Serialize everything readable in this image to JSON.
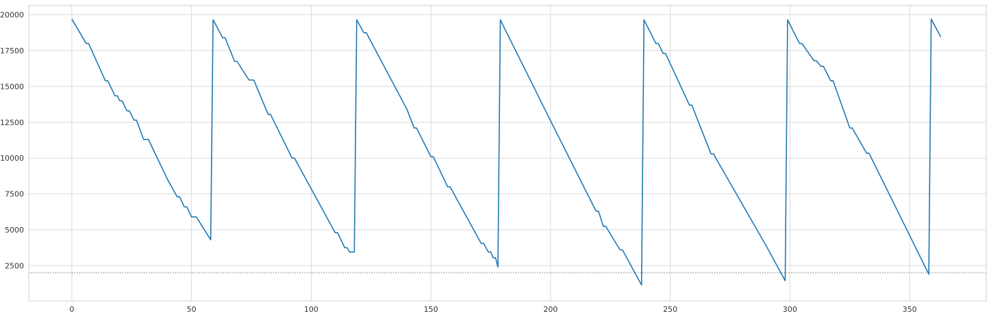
{
  "chart_data": {
    "type": "line",
    "title": "",
    "xlabel": "",
    "ylabel": "",
    "xlim": [
      -18,
      382
    ],
    "ylim": [
      40,
      20650
    ],
    "grid": true,
    "x_ticks": [
      0,
      50,
      100,
      150,
      200,
      250,
      300,
      350
    ],
    "x_tick_labels": [
      "0",
      "50",
      "100",
      "150",
      "200",
      "250",
      "300",
      "350"
    ],
    "y_ticks": [
      2500,
      5000,
      7500,
      10000,
      12500,
      15000,
      17500,
      20000
    ],
    "y_tick_labels": [
      "2500",
      "5000",
      "7500",
      "10000",
      "12500",
      "15000",
      "17500",
      "20000"
    ],
    "reference_line": {
      "y": 2000,
      "style": "dotted",
      "color": "#777777"
    },
    "series": [
      {
        "color": "#1f77b4",
        "points": [
          [
            0,
            19700
          ],
          [
            6,
            18000
          ],
          [
            7,
            18000
          ],
          [
            14,
            15400
          ],
          [
            15,
            15400
          ],
          [
            18,
            14350
          ],
          [
            19,
            14350
          ],
          [
            20,
            14000
          ],
          [
            21,
            14000
          ],
          [
            23,
            13300
          ],
          [
            24,
            13300
          ],
          [
            26,
            12650
          ],
          [
            27,
            12650
          ],
          [
            30,
            11300
          ],
          [
            32,
            11300
          ],
          [
            40,
            8500
          ],
          [
            44,
            7300
          ],
          [
            45,
            7300
          ],
          [
            47,
            6600
          ],
          [
            48,
            6600
          ],
          [
            50,
            5900
          ],
          [
            52,
            5900
          ],
          [
            58,
            4300
          ],
          [
            59,
            19650
          ],
          [
            63,
            18400
          ],
          [
            64,
            18400
          ],
          [
            68,
            16750
          ],
          [
            69,
            16750
          ],
          [
            74,
            15450
          ],
          [
            76,
            15450
          ],
          [
            82,
            13050
          ],
          [
            83,
            13050
          ],
          [
            92,
            10000
          ],
          [
            93,
            10000
          ],
          [
            110,
            4800
          ],
          [
            111,
            4800
          ],
          [
            114,
            3750
          ],
          [
            115,
            3750
          ],
          [
            116,
            3450
          ],
          [
            118,
            3450
          ],
          [
            119,
            19650
          ],
          [
            122,
            18750
          ],
          [
            123,
            18750
          ],
          [
            140,
            13400
          ],
          [
            143,
            12100
          ],
          [
            144,
            12100
          ],
          [
            150,
            10100
          ],
          [
            151,
            10100
          ],
          [
            157,
            8000
          ],
          [
            158,
            8000
          ],
          [
            171,
            4050
          ],
          [
            172,
            4050
          ],
          [
            174,
            3450
          ],
          [
            175,
            3450
          ],
          [
            176,
            3050
          ],
          [
            177,
            3050
          ],
          [
            178,
            2400
          ],
          [
            179,
            19650
          ],
          [
            200,
            12600
          ],
          [
            219,
            6300
          ],
          [
            220,
            6300
          ],
          [
            222,
            5250
          ],
          [
            223,
            5250
          ],
          [
            229,
            3600
          ],
          [
            230,
            3600
          ],
          [
            238,
            1150
          ],
          [
            239,
            19650
          ],
          [
            241,
            19000
          ],
          [
            244,
            18000
          ],
          [
            245,
            18000
          ],
          [
            247,
            17300
          ],
          [
            248,
            17300
          ],
          [
            258,
            13700
          ],
          [
            259,
            13700
          ],
          [
            267,
            10300
          ],
          [
            268,
            10300
          ],
          [
            290,
            3900
          ],
          [
            298,
            1450
          ],
          [
            299,
            19650
          ],
          [
            304,
            18000
          ],
          [
            305,
            18000
          ],
          [
            310,
            16800
          ],
          [
            311,
            16800
          ],
          [
            313,
            16400
          ],
          [
            314,
            16400
          ],
          [
            317,
            15400
          ],
          [
            318,
            15400
          ],
          [
            325,
            12100
          ],
          [
            326,
            12100
          ],
          [
            332,
            10350
          ],
          [
            333,
            10350
          ],
          [
            358,
            1900
          ],
          [
            359,
            19700
          ],
          [
            363,
            18450
          ]
        ]
      }
    ]
  }
}
